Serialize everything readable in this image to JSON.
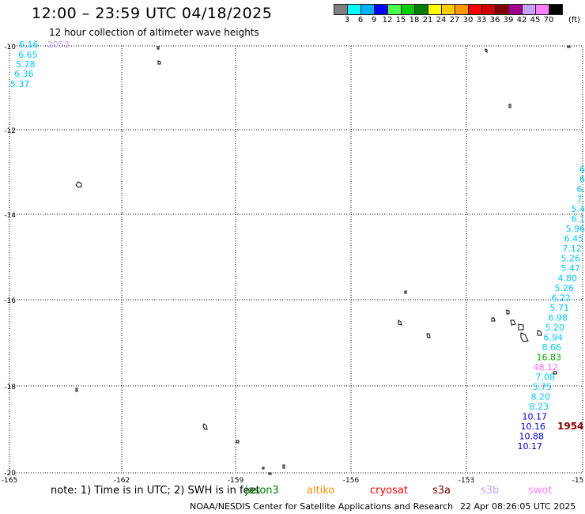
{
  "header": {
    "title": "12:00 – 23:59 UTC 04/18/2025",
    "subtitle": "12 hour collection of altimeter wave heights"
  },
  "color_scale": {
    "unit": "(ft)",
    "colors": [
      "#808080",
      "#00ffff",
      "#00b0ff",
      "#0000ff",
      "#4cff4c",
      "#00cc00",
      "#008000",
      "#ffff00",
      "#ffcc00",
      "#ff9900",
      "#ff0000",
      "#cc0000",
      "#800000",
      "#a0008c",
      "#c8a0ff",
      "#ff80ff",
      "#000000"
    ],
    "labels": [
      "3",
      "6",
      "9",
      "12",
      "15",
      "18",
      "21",
      "24",
      "27",
      "30",
      "33",
      "36",
      "39",
      "42",
      "45",
      "70"
    ]
  },
  "map": {
    "lat_labels": [
      "-10",
      "-12",
      "-14",
      "-16",
      "-18",
      "-20"
    ],
    "lon_labels": [
      "-165",
      "-162",
      "-159",
      "-156",
      "-153",
      "-15"
    ],
    "colors": {
      "cyan_text": "#00c8ff",
      "blue_text": "#0000cc",
      "green_text": "#00aa00",
      "pink_text": "#ff66ff",
      "lavender_text": "#c0a0ff",
      "maroon_text": "#800000"
    },
    "left_track": {
      "label_2053": "2053",
      "values": [
        "6.16",
        "6.65",
        "5.78",
        "6.36",
        "5.37"
      ]
    },
    "right_track": {
      "values": [
        "6",
        "6",
        "6.",
        "7.",
        "5.4",
        "6.1",
        "5.96",
        "6.45",
        "7.12",
        "5.26",
        "5.47",
        "4.80",
        "5.26",
        "6.22",
        "5.71",
        "6.98",
        "5.20",
        "6.94",
        "8.66",
        "16.83",
        "48.12",
        "7.08",
        "5.75",
        "8.20",
        "8.23",
        "10.17",
        "10.16",
        "10.88",
        "10.17"
      ],
      "time_label": "1954"
    }
  },
  "legend": {
    "note": "note: 1) Time is in UTC; 2) SWH is in feet",
    "satellites": [
      "jason3",
      "altiko",
      "cryosat",
      "s3a",
      "s3b",
      "swot"
    ],
    "satellite_colors": [
      "#008000",
      "#ff8c00",
      "#ff0000",
      "#800000",
      "#c0a0ff",
      "#ff80ff"
    ]
  },
  "footer": {
    "credit": "NOAA/NESDIS Center for Satellite Applications and Research",
    "generated": "22 Apr 08:26:05 UTC 2025"
  }
}
